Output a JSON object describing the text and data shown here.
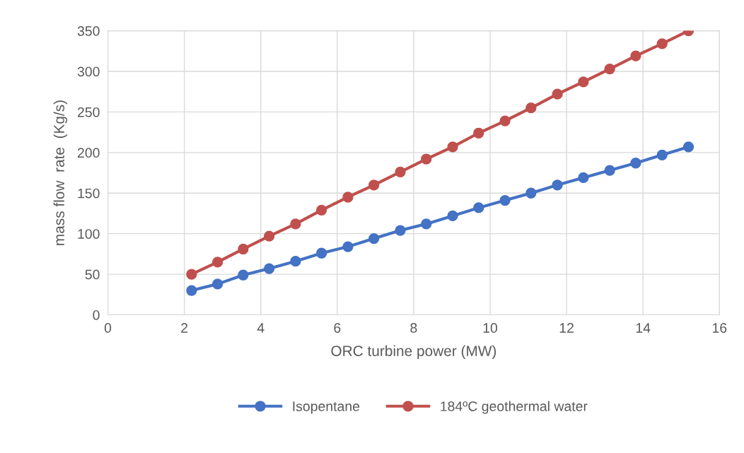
{
  "chart_data": {
    "type": "line",
    "xlabel": "ORC turbine power (MW)",
    "ylabel": "mass flow  rate  (Kg/s)",
    "xlim": [
      0,
      16
    ],
    "xticks": [
      0,
      2,
      4,
      6,
      8,
      10,
      12,
      14,
      16
    ],
    "ylim": [
      0,
      350
    ],
    "yticks": [
      0,
      50,
      100,
      150,
      200,
      250,
      300,
      350
    ],
    "grid": true,
    "legend": "bottom",
    "marker": "circle",
    "line_style": "solid",
    "x": [
      2.19,
      2.87,
      3.54,
      4.22,
      4.91,
      5.59,
      6.28,
      6.96,
      7.65,
      8.33,
      9.02,
      9.7,
      10.39,
      11.07,
      11.76,
      12.44,
      13.13,
      13.81,
      14.5,
      15.19
    ],
    "series": [
      {
        "name": "Isopentane",
        "color": "#4472c4",
        "values": [
          30,
          38,
          49,
          57,
          66,
          76,
          84,
          94,
          104,
          112,
          122,
          132,
          141,
          150,
          160,
          169,
          178,
          187,
          197,
          207
        ]
      },
      {
        "name": "184ºC geothermal water",
        "color": "#c0504d",
        "values": [
          50,
          65,
          81,
          97,
          112,
          129,
          145,
          160,
          176,
          192,
          207,
          224,
          239,
          255,
          272,
          287,
          303,
          319,
          334,
          350
        ]
      }
    ]
  }
}
